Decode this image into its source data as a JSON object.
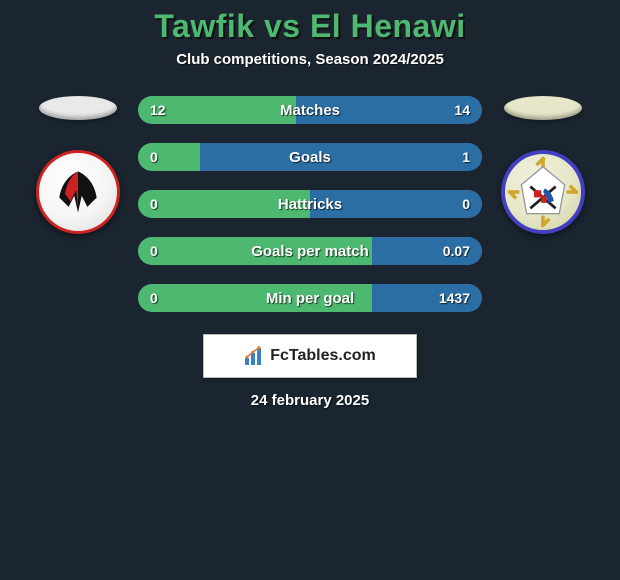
{
  "title": "Tawfik vs El Henawi",
  "subtitle": "Club competitions, Season 2024/2025",
  "date": "24 february 2025",
  "logo_text": "FcTables.com",
  "colors": {
    "title": "#4db870",
    "bar_green": "#4db870",
    "bar_blue": "#2b6ea3",
    "left_oval": "#e9e9e9",
    "right_oval": "#e6e6c8"
  },
  "stats": [
    {
      "label": "Matches",
      "left_text": "12",
      "right_text": "14",
      "left_pct": 46,
      "right_pct": 54
    },
    {
      "label": "Goals",
      "left_text": "0",
      "right_text": "1",
      "left_pct": 18,
      "right_pct": 82
    },
    {
      "label": "Hattricks",
      "left_text": "0",
      "right_text": "0",
      "left_pct": 50,
      "right_pct": 50
    },
    {
      "label": "Goals per match",
      "left_text": "0",
      "right_text": "0.07",
      "left_pct": 68,
      "right_pct": 32
    },
    {
      "label": "Min per goal",
      "left_text": "0",
      "right_text": "1437",
      "left_pct": 68,
      "right_pct": 32
    }
  ]
}
